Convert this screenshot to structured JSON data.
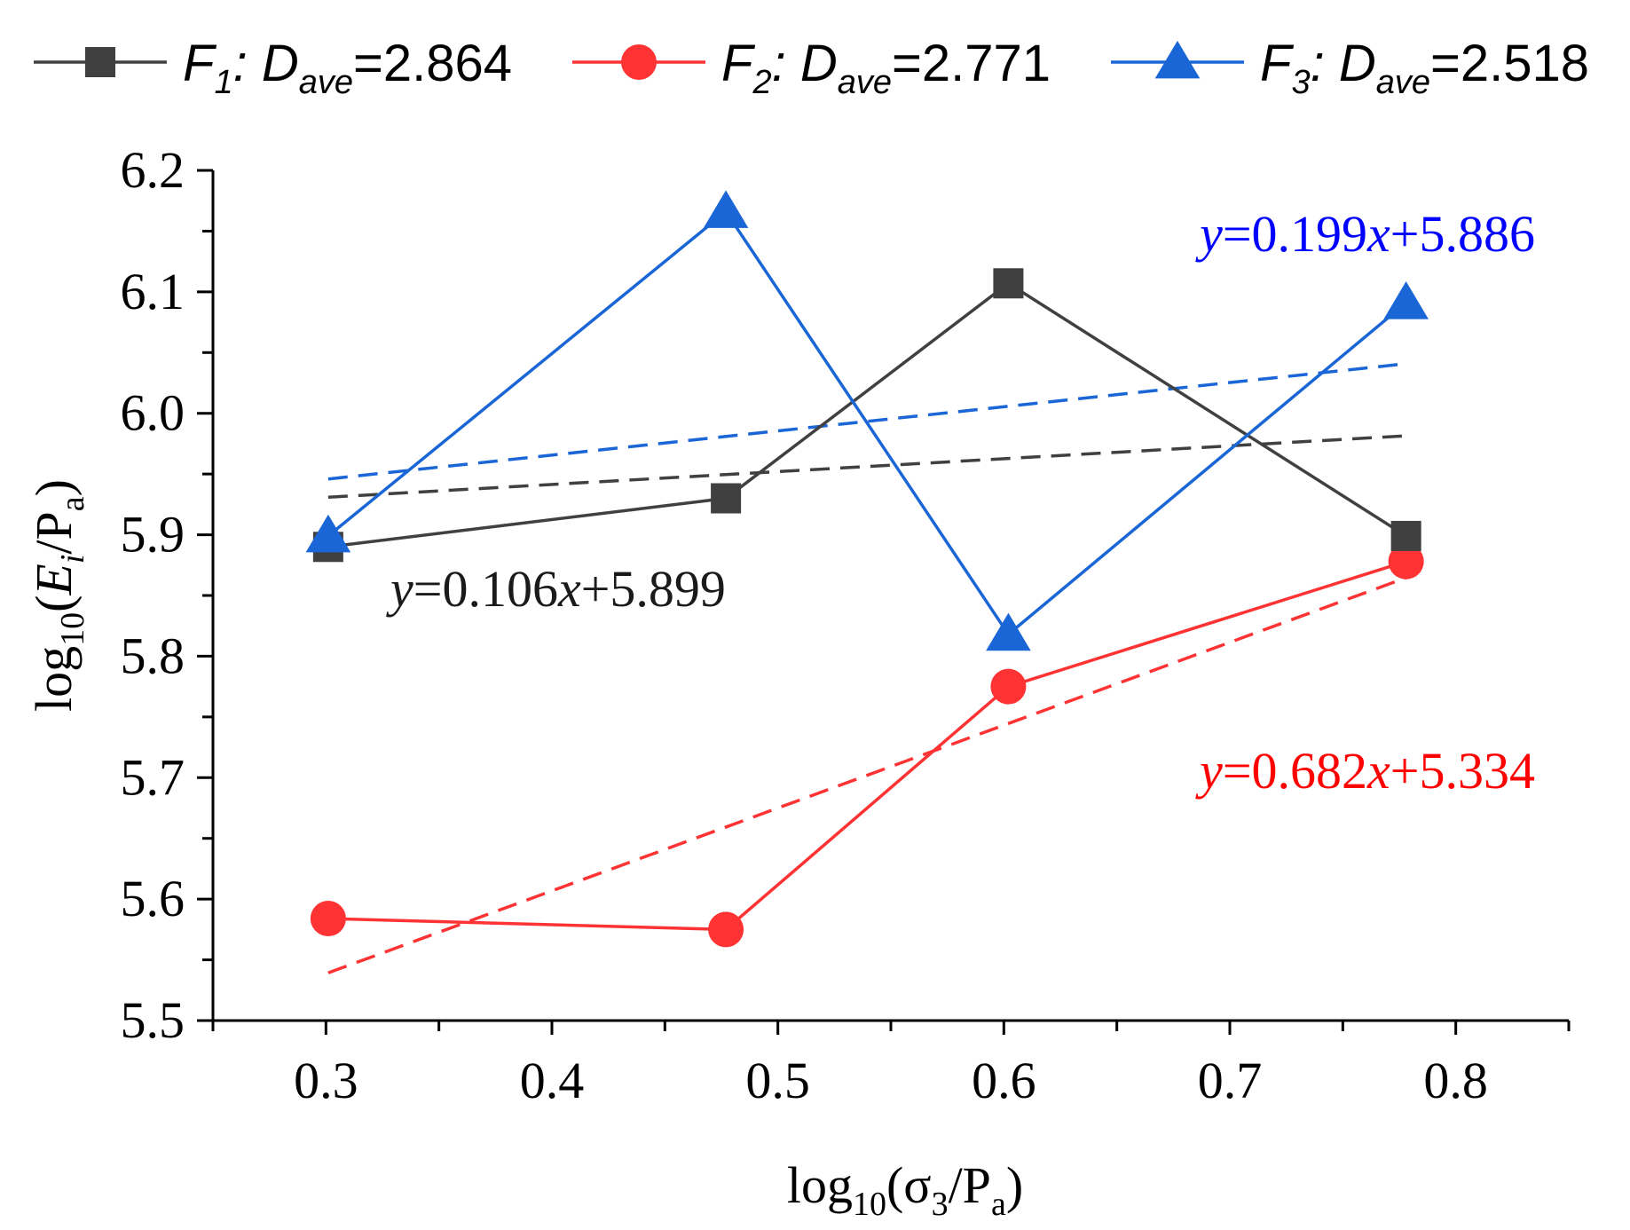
{
  "chart_data": {
    "type": "line",
    "xlabel": {
      "base": "log",
      "sub": "10",
      "open": "(σ",
      "sub2": "3",
      "mid": "/P",
      "sub3": "a",
      "close": ")"
    },
    "ylabel": {
      "base": "log",
      "sub": "10",
      "open": "(",
      "var": "E",
      "sub2": "i",
      "mid": "/P",
      "sub3": "a",
      "close": ")"
    },
    "xlim": [
      0.25,
      0.85
    ],
    "ylim": [
      5.5,
      6.2
    ],
    "xticks": [
      "0.3",
      "0.4",
      "0.5",
      "0.6",
      "0.7",
      "0.8"
    ],
    "yticks": [
      "5.5",
      "5.6",
      "5.7",
      "5.8",
      "5.9",
      "6.0",
      "6.1",
      "6.2"
    ],
    "legend_position": "top",
    "series": [
      {
        "name": "F1: Dave=2.864",
        "label": {
          "var": "F",
          "sub": "1",
          "sep": ": ",
          "var2": "D",
          "sub2": "ave",
          "value": "=2.864"
        },
        "marker": "square",
        "color": "#404040",
        "x": [
          0.301,
          0.477,
          0.602,
          0.778
        ],
        "y": [
          5.89,
          5.93,
          6.107,
          5.899
        ],
        "fit": {
          "slope": 0.106,
          "intercept": 5.899
        },
        "equation": {
          "v1": "y",
          "t1": "=0.106",
          "v2": "x",
          "t2": "+5.899"
        }
      },
      {
        "name": "F2: Dave=2.771",
        "label": {
          "var": "F",
          "sub": "2",
          "sep": ": ",
          "var2": "D",
          "sub2": "ave",
          "value": "=2.771"
        },
        "marker": "circle",
        "color": "#ff3333",
        "x": [
          0.301,
          0.477,
          0.602,
          0.778
        ],
        "y": [
          5.584,
          5.575,
          5.775,
          5.878
        ],
        "fit": {
          "slope": 0.682,
          "intercept": 5.334
        },
        "equation": {
          "v1": "y",
          "t1": "=0.682",
          "v2": "x",
          "t2": "+5.334"
        }
      },
      {
        "name": "F3: Dave=2.518",
        "label": {
          "var": "F",
          "sub": "3",
          "sep": ": ",
          "var2": "D",
          "sub2": "ave",
          "value": "=2.518"
        },
        "marker": "triangle",
        "color": "#1a66d6",
        "x": [
          0.301,
          0.477,
          0.602,
          0.778
        ],
        "y": [
          5.899,
          6.166,
          5.818,
          6.091
        ],
        "fit": {
          "slope": 0.199,
          "intercept": 5.886
        },
        "equation": {
          "v1": "y",
          "t1": "=0.199",
          "v2": "x",
          "t2": "+5.886"
        }
      }
    ],
    "equation_colors": [
      "#1a1a1a",
      "#ff0000",
      "#0000ff"
    ]
  }
}
